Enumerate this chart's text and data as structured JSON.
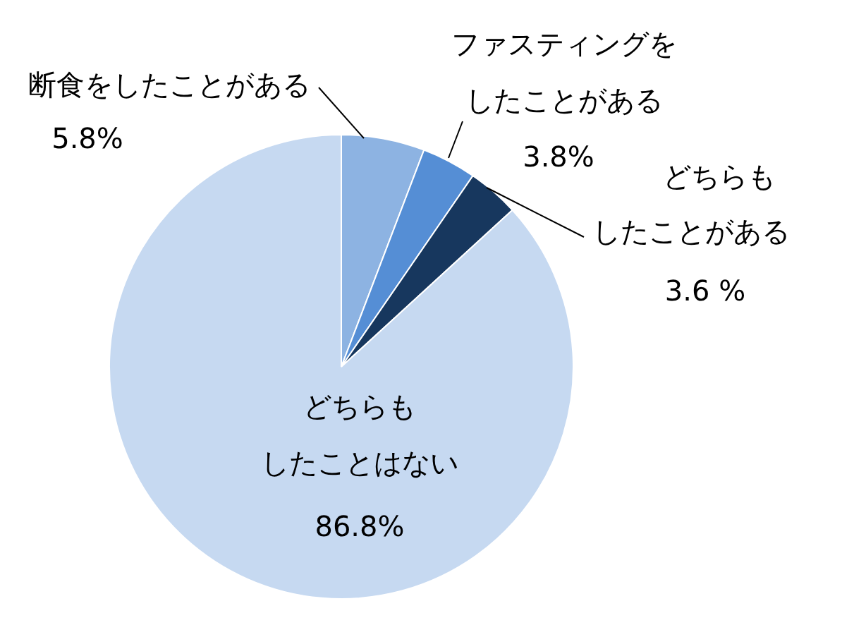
{
  "chart_data": {
    "type": "pie",
    "categories": [
      "断食をしたことがある",
      "ファスティングをしたことがある",
      "どちらもしたことがある",
      "どちらもしたことはない"
    ],
    "values": [
      5.8,
      3.8,
      3.6,
      86.8
    ],
    "value_labels": [
      "5.8%",
      "3.8%",
      "3.6 %",
      "86.8%"
    ],
    "colors": [
      "#8db3e2",
      "#558ed5",
      "#17375e",
      "#c6d9f1"
    ],
    "legend": false
  }
}
